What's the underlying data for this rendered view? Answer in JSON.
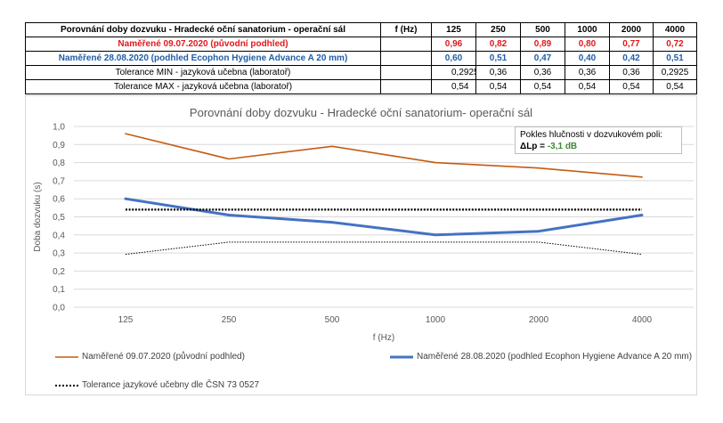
{
  "table": {
    "header": {
      "name": "Porovnání doby dozvuku - Hradecké oční sanatorium - operační sál",
      "unit": "f (Hz)",
      "freqs": [
        "125",
        "250",
        "500",
        "1000",
        "2000",
        "4000"
      ]
    },
    "rows": [
      {
        "name": "Naměřené 09.07.2020 (původní podhled)",
        "values": [
          "0,96",
          "0,82",
          "0,89",
          "0,80",
          "0,77",
          "0,72"
        ]
      },
      {
        "name": "Naměřené 28.08.2020 (podhled Ecophon Hygiene Advance A 20 mm)",
        "values": [
          "0,60",
          "0,51",
          "0,47",
          "0,40",
          "0,42",
          "0,51"
        ]
      },
      {
        "name": "Tolerance MIN - jazyková učebna (laboratoř)",
        "values": [
          "0,2925",
          "0,36",
          "0,36",
          "0,36",
          "0,36",
          "0,2925"
        ]
      },
      {
        "name": "Tolerance MAX - jazyková učebna (laboratoř)",
        "values": [
          "0,54",
          "0,54",
          "0,54",
          "0,54",
          "0,54",
          "0,54"
        ]
      }
    ]
  },
  "note": {
    "line1": "Pokles hlučnosti v dozvukovém poli:",
    "label": "ΔLp",
    "eq": " = ",
    "value": "-3,1 dB"
  },
  "legend": {
    "s1": "Naměřené 09.07.2020 (původní podhled)",
    "s2": "Naměřené 28.08.2020 (podhled Ecophon Hygiene Advance A 20 mm)",
    "s3": "Tolerance jazykové učebny dle ČSN 73 0527"
  },
  "colors": {
    "series1": "#c55a11",
    "series2": "#4472c4",
    "tolerance": "#000000",
    "grid": "#d9d9d9",
    "red_text": "#e0191d",
    "blue_text": "#1f5ea8"
  },
  "chart_data": {
    "type": "line",
    "title": "Porovnání doby dozvuku - Hradecké oční sanatorium- operační sál",
    "xlabel": "f (Hz)",
    "ylabel": "Doba dozvuku (s)",
    "categories": [
      "125",
      "250",
      "500",
      "1000",
      "2000",
      "4000"
    ],
    "ylim": [
      0,
      1.0
    ],
    "ytick_step": 0.1,
    "ytick_labels": [
      "0,0",
      "0,1",
      "0,2",
      "0,3",
      "0,4",
      "0,5",
      "0,6",
      "0,7",
      "0,8",
      "0,9",
      "1,0"
    ],
    "grid": true,
    "legend_position": "bottom",
    "series": [
      {
        "name": "Naměřené 09.07.2020 (původní podhled)",
        "values": [
          0.96,
          0.82,
          0.89,
          0.8,
          0.77,
          0.72
        ],
        "style": "solid-thin"
      },
      {
        "name": "Naměřené 28.08.2020 (podhled Ecophon Hygiene Advance A 20 mm)",
        "values": [
          0.6,
          0.51,
          0.47,
          0.4,
          0.42,
          0.51
        ],
        "style": "solid-thick"
      },
      {
        "name": "Tolerance jazykové učebny dle ČSN 73 0527",
        "values": [
          0.54,
          0.54,
          0.54,
          0.54,
          0.54,
          0.54
        ],
        "style": "dotted-thick"
      },
      {
        "name": "Tolerance jazykové učebny dle ČSN 73 0527",
        "values": [
          0.2925,
          0.36,
          0.36,
          0.36,
          0.36,
          0.2925
        ],
        "style": "dotted-thin"
      }
    ]
  }
}
